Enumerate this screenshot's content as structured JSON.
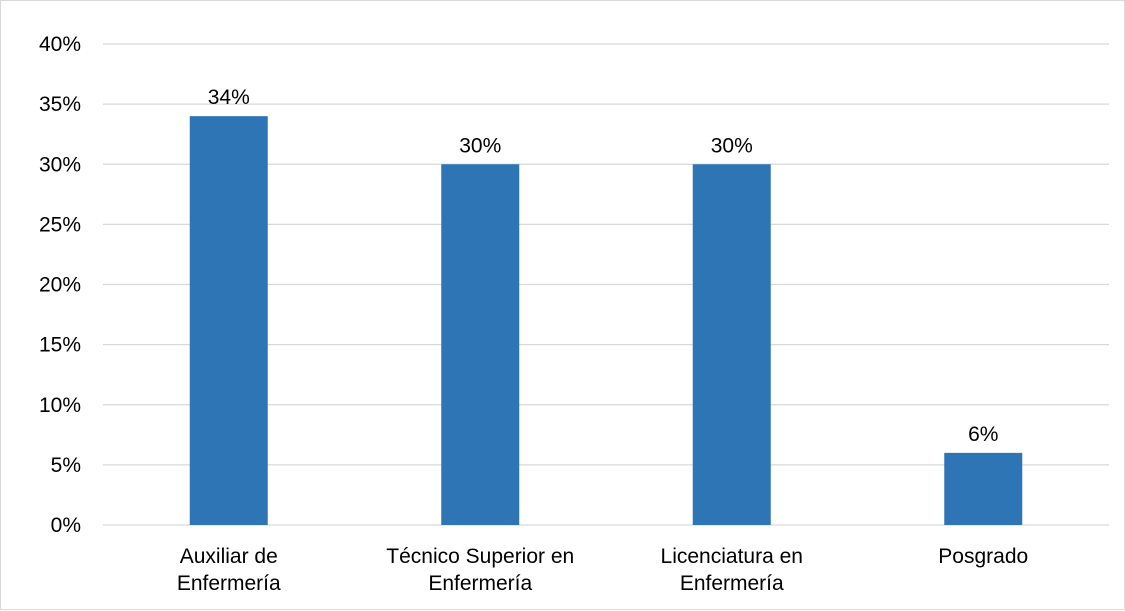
{
  "chart_data": {
    "type": "bar",
    "categories": [
      [
        "Auxiliar de",
        "Enfermería"
      ],
      [
        "Técnico Superior en",
        "Enfermería"
      ],
      [
        "Licenciatura en",
        "Enfermería"
      ],
      [
        "Posgrado"
      ]
    ],
    "values": [
      34,
      30,
      30,
      6
    ],
    "data_labels": [
      "34%",
      "30%",
      "30%",
      "6%"
    ],
    "y_ticks": [
      "0%",
      "5%",
      "10%",
      "15%",
      "20%",
      "25%",
      "30%",
      "35%",
      "40%"
    ],
    "ylim": [
      0,
      40
    ],
    "title": "",
    "xlabel": "",
    "ylabel": "",
    "grid": true,
    "legend": "none",
    "bar_color": "#2e75b6",
    "grid_color": "#d9d9d9"
  }
}
